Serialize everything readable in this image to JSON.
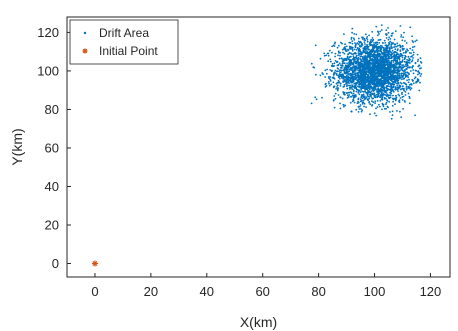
{
  "chart_data": {
    "type": "scatter",
    "xlabel": "X(km)",
    "ylabel": "Y(km)",
    "xlim": [
      -10,
      127
    ],
    "ylim": [
      -7,
      128
    ],
    "xticks": [
      0,
      20,
      40,
      60,
      80,
      100,
      120
    ],
    "yticks": [
      0,
      20,
      40,
      60,
      80,
      100,
      120
    ],
    "grid": false,
    "legend_position": "top-left",
    "series": [
      {
        "name": "Drift Area",
        "marker": "dot",
        "color": "#0072BD",
        "distribution": {
          "type": "gaussian-cloud",
          "center": [
            100,
            100
          ],
          "std": [
            7,
            8
          ],
          "count": 3000,
          "x_range": [
            77,
            117
          ],
          "y_range": [
            73,
            126
          ]
        }
      },
      {
        "name": "Initial Point",
        "marker": "asterisk",
        "color": "#D95319",
        "points": [
          [
            0,
            0
          ]
        ]
      }
    ]
  }
}
